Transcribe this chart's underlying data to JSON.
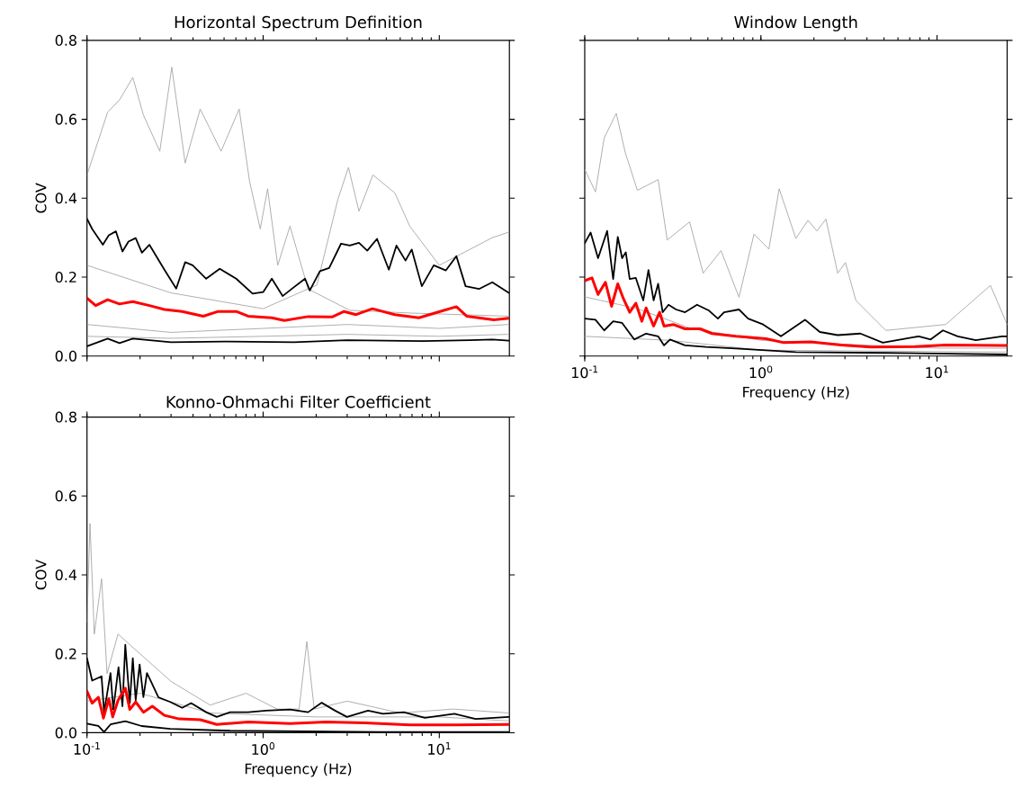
{
  "chart_data": [
    {
      "type": "line",
      "title": "Horizontal Spectrum Definition",
      "ylabel": "COV",
      "log": "x",
      "tick_labels": "y",
      "xlim": [
        0.1,
        25
      ],
      "ylim": [
        0,
        0.8
      ],
      "xticks": [
        {
          "value": 0.1,
          "label": null
        },
        {
          "value": 1,
          "label": null
        },
        {
          "value": 10,
          "label": null
        }
      ],
      "yticks": [
        {
          "value": 0,
          "label": "0.0"
        },
        {
          "value": 0.2,
          "label": "0.2"
        },
        {
          "value": 0.4,
          "label": "0.4"
        },
        {
          "value": 0.6,
          "label": "0.6"
        },
        {
          "value": 0.8,
          "label": "0.8"
        }
      ],
      "series": [
        {
          "color": "#a6a6a6",
          "x": [
            0.1,
            0.131,
            0.153,
            0.182,
            0.209,
            0.259,
            0.303,
            0.361,
            0.439,
            0.494,
            0.577,
            0.731,
            0.837,
            0.963,
            1.06,
            1.21,
            1.42,
            1.8,
            3.1,
            6.8,
            24.8
          ],
          "values": [
            0.459,
            0.618,
            0.649,
            0.706,
            0.611,
            0.519,
            0.732,
            0.489,
            0.626,
            0.58,
            0.519,
            0.626,
            0.443,
            0.322,
            0.424,
            0.23,
            0.329,
            0.17,
            0.116,
            0.109,
            0.101
          ]
        },
        {
          "color": "#a6a6a6",
          "x": [
            0.1,
            0.3,
            1.0,
            2.02,
            2.66,
            3.05,
            3.5,
            4.2,
            5.6,
            6.8,
            10,
            20,
            24.8
          ],
          "values": [
            0.23,
            0.16,
            0.12,
            0.18,
            0.398,
            0.478,
            0.367,
            0.459,
            0.413,
            0.329,
            0.23,
            0.3,
            0.314
          ]
        },
        {
          "color": "#a6a6a6",
          "x": [
            0.1,
            0.3,
            1,
            3,
            10,
            24.8
          ],
          "values": [
            0.08,
            0.06,
            0.07,
            0.08,
            0.07,
            0.08
          ]
        },
        {
          "color": "#a6a6a6",
          "x": [
            0.1,
            0.3,
            1,
            3,
            10,
            24.8
          ],
          "values": [
            0.05,
            0.045,
            0.05,
            0.055,
            0.05,
            0.055
          ]
        },
        {
          "color": "#000000",
          "x": [
            0.1,
            0.107,
            0.123,
            0.133,
            0.146,
            0.159,
            0.172,
            0.189,
            0.205,
            0.226,
            0.275,
            0.321,
            0.361,
            0.398,
            0.475,
            0.567,
            0.703,
            0.871,
            1.0,
            1.12,
            1.29,
            1.48,
            1.73,
            1.84,
            2.1,
            2.37,
            2.77,
            3.1,
            3.5,
            3.9,
            4.43,
            5.17,
            5.71,
            6.43,
            6.97,
            7.96,
            9.3,
            10.9,
            12.5,
            14.1,
            16.8,
            20.0,
            24.8
          ],
          "values": [
            0.348,
            0.322,
            0.282,
            0.306,
            0.316,
            0.265,
            0.29,
            0.299,
            0.262,
            0.282,
            0.219,
            0.171,
            0.238,
            0.23,
            0.196,
            0.221,
            0.196,
            0.158,
            0.162,
            0.196,
            0.152,
            0.173,
            0.196,
            0.166,
            0.215,
            0.223,
            0.285,
            0.28,
            0.287,
            0.267,
            0.297,
            0.219,
            0.28,
            0.242,
            0.27,
            0.177,
            0.23,
            0.217,
            0.253,
            0.177,
            0.17,
            0.187,
            0.16
          ]
        },
        {
          "color": "#000000",
          "x": [
            0.1,
            0.131,
            0.153,
            0.182,
            0.3,
            0.6,
            1.5,
            3,
            8,
            15,
            20,
            24.8
          ],
          "values": [
            0.025,
            0.044,
            0.033,
            0.044,
            0.035,
            0.037,
            0.035,
            0.04,
            0.038,
            0.04,
            0.042,
            0.039
          ]
        },
        {
          "color": "#ff0000",
          "x": [
            0.1,
            0.112,
            0.131,
            0.153,
            0.182,
            0.226,
            0.275,
            0.347,
            0.457,
            0.556,
            0.703,
            0.822,
            1.12,
            1.32,
            1.8,
            2.46,
            2.88,
            3.37,
            4.17,
            5.6,
            7.66,
            10.1,
            12.5,
            14.3,
            20.4,
            24.8
          ],
          "values": [
            0.147,
            0.128,
            0.143,
            0.132,
            0.138,
            0.128,
            0.118,
            0.113,
            0.101,
            0.113,
            0.113,
            0.101,
            0.097,
            0.09,
            0.1,
            0.099,
            0.113,
            0.105,
            0.12,
            0.105,
            0.097,
            0.113,
            0.125,
            0.101,
            0.092,
            0.096
          ]
        }
      ]
    },
    {
      "type": "line",
      "title": "Window Length",
      "xlabel": "Frequency (Hz)",
      "log": "x",
      "tick_labels": "x",
      "xlim": [
        0.1,
        25
      ],
      "ylim": [
        0,
        0.8
      ],
      "xticks": [
        {
          "value": 0.1,
          "label": "10$^{-1}$"
        },
        {
          "value": 1,
          "label": "10$^{0}$"
        },
        {
          "value": 10,
          "label": "10$^{1}$"
        }
      ],
      "yticks": [
        {
          "value": 0,
          "label": null
        },
        {
          "value": 0.2,
          "label": null
        },
        {
          "value": 0.4,
          "label": null
        },
        {
          "value": 0.6,
          "label": null
        },
        {
          "value": 0.8,
          "label": null
        }
      ],
      "series": [
        {
          "color": "#a6a6a6",
          "x": [
            0.1,
            0.115,
            0.129,
            0.151,
            0.17,
            0.199,
            0.261,
            0.294,
            0.394,
            0.47,
            0.594,
            0.751,
            0.914,
            1.11,
            1.27,
            1.58,
            1.85,
            2.08,
            2.34,
            2.73,
            3.02,
            3.46,
            5.12,
            11.2,
            20.1,
            25
          ],
          "values": [
            0.473,
            0.416,
            0.553,
            0.615,
            0.515,
            0.42,
            0.447,
            0.294,
            0.34,
            0.21,
            0.267,
            0.149,
            0.309,
            0.271,
            0.424,
            0.298,
            0.344,
            0.317,
            0.347,
            0.21,
            0.237,
            0.141,
            0.065,
            0.08,
            0.179,
            0.08
          ]
        },
        {
          "color": "#a6a6a6",
          "x": [
            0.1,
            0.2,
            0.4,
            1,
            3,
            10,
            25
          ],
          "values": [
            0.15,
            0.12,
            0.07,
            0.04,
            0.03,
            0.02,
            0.02
          ]
        },
        {
          "color": "#a6a6a6",
          "x": [
            0.1,
            0.3,
            1,
            25
          ],
          "values": [
            0.05,
            0.04,
            0.015,
            0.01
          ]
        },
        {
          "color": "#000000",
          "x": [
            0.1,
            0.108,
            0.119,
            0.134,
            0.145,
            0.154,
            0.163,
            0.171,
            0.18,
            0.195,
            0.215,
            0.23,
            0.246,
            0.261,
            0.277,
            0.299,
            0.33,
            0.371,
            0.434,
            0.508,
            0.57,
            0.618,
            0.751,
            0.846,
            1.03,
            1.3,
            1.78,
            2.16,
            2.73,
            3.67,
            4.92,
            6.22,
            7.87,
            9.2,
            10.8,
            13.1,
            16.6,
            23.4,
            25
          ],
          "values": [
            0.286,
            0.313,
            0.248,
            0.317,
            0.195,
            0.302,
            0.248,
            0.263,
            0.195,
            0.198,
            0.141,
            0.218,
            0.141,
            0.183,
            0.111,
            0.13,
            0.118,
            0.111,
            0.13,
            0.115,
            0.095,
            0.111,
            0.118,
            0.095,
            0.08,
            0.05,
            0.092,
            0.061,
            0.053,
            0.057,
            0.034,
            0.042,
            0.05,
            0.042,
            0.065,
            0.05,
            0.04,
            0.05,
            0.05
          ]
        },
        {
          "color": "#000000",
          "x": [
            0.1,
            0.115,
            0.129,
            0.145,
            0.163,
            0.191,
            0.223,
            0.261,
            0.282,
            0.305,
            0.371,
            0.488,
            0.722,
            1.58,
            5.12,
            25
          ],
          "values": [
            0.095,
            0.092,
            0.065,
            0.088,
            0.084,
            0.042,
            0.057,
            0.05,
            0.027,
            0.042,
            0.027,
            0.023,
            0.019,
            0.01,
            0.008,
            0.004
          ]
        },
        {
          "color": "#ff0000",
          "x": [
            0.1,
            0.11,
            0.119,
            0.131,
            0.142,
            0.154,
            0.166,
            0.18,
            0.195,
            0.211,
            0.223,
            0.246,
            0.266,
            0.282,
            0.318,
            0.371,
            0.452,
            0.528,
            0.722,
            1.07,
            1.35,
            1.92,
            2.85,
            4.21,
            7.57,
            11.2,
            23.4,
            25
          ],
          "values": [
            0.191,
            0.198,
            0.156,
            0.187,
            0.126,
            0.183,
            0.145,
            0.111,
            0.134,
            0.088,
            0.122,
            0.076,
            0.111,
            0.076,
            0.08,
            0.069,
            0.069,
            0.057,
            0.05,
            0.044,
            0.034,
            0.036,
            0.028,
            0.023,
            0.024,
            0.028,
            0.027,
            0.027
          ]
        }
      ]
    },
    {
      "type": "line",
      "title": "Konno-Ohmachi Filter Coefficient",
      "xlabel": "Frequency (Hz)",
      "ylabel": "COV",
      "log": "x",
      "xlim": [
        0.1,
        25
      ],
      "ylim": [
        0,
        0.8
      ],
      "xticks": [
        {
          "value": 0.1,
          "label": "10$^{-1}$"
        },
        {
          "value": 1,
          "label": "10$^{0}$"
        },
        {
          "value": 10,
          "label": "10$^{1}$"
        }
      ],
      "yticks": [
        {
          "value": 0,
          "label": "0.0"
        },
        {
          "value": 0.2,
          "label": "0.2"
        },
        {
          "value": 0.4,
          "label": "0.4"
        },
        {
          "value": 0.6,
          "label": "0.6"
        },
        {
          "value": 0.8,
          "label": "0.8"
        }
      ],
      "series": [
        {
          "color": "#a6a6a6",
          "x": [
            0.1,
            0.104,
            0.11,
            0.121,
            0.13,
            0.15,
            0.2,
            0.3,
            0.5,
            0.8,
            1.2,
            1.6,
            1.77,
            1.95,
            3,
            6,
            12,
            24.8
          ],
          "values": [
            0.28,
            0.53,
            0.25,
            0.39,
            0.15,
            0.25,
            0.2,
            0.13,
            0.07,
            0.1,
            0.06,
            0.06,
            0.231,
            0.06,
            0.08,
            0.05,
            0.06,
            0.05
          ]
        },
        {
          "color": "#a6a6a6",
          "x": [
            0.1,
            0.2,
            0.5,
            2,
            10,
            24.8
          ],
          "values": [
            0.08,
            0.1,
            0.05,
            0.04,
            0.04,
            0.03
          ]
        },
        {
          "color": "#000000",
          "x": [
            0.1,
            0.107,
            0.121,
            0.125,
            0.136,
            0.141,
            0.151,
            0.159,
            0.165,
            0.175,
            0.182,
            0.189,
            0.199,
            0.209,
            0.219,
            0.232,
            0.254,
            0.297,
            0.347,
            0.39,
            0.475,
            0.545,
            0.65,
            0.822,
            1.04,
            1.42,
            1.8,
            2.15,
            2.56,
            2.99,
            3.94,
            4.79,
            6.29,
            8.28,
            12.2,
            16.1,
            24.8
          ],
          "values": [
            0.189,
            0.132,
            0.143,
            0.052,
            0.151,
            0.059,
            0.166,
            0.067,
            0.223,
            0.075,
            0.189,
            0.082,
            0.173,
            0.09,
            0.151,
            0.128,
            0.09,
            0.078,
            0.063,
            0.075,
            0.052,
            0.04,
            0.052,
            0.052,
            0.056,
            0.059,
            0.052,
            0.076,
            0.056,
            0.04,
            0.056,
            0.048,
            0.052,
            0.038,
            0.048,
            0.035,
            0.04
          ]
        },
        {
          "color": "#000000",
          "x": [
            0.1,
            0.116,
            0.125,
            0.136,
            0.165,
            0.204,
            0.297,
            0.65,
            4.6,
            24.8
          ],
          "values": [
            0.023,
            0.017,
            0.002,
            0.021,
            0.029,
            0.017,
            0.01,
            0.005,
            0.002,
            0.002
          ]
        },
        {
          "color": "#ff0000",
          "x": [
            0.1,
            0.107,
            0.116,
            0.124,
            0.133,
            0.14,
            0.15,
            0.165,
            0.175,
            0.189,
            0.209,
            0.235,
            0.275,
            0.334,
            0.44,
            0.545,
            0.822,
            1.42,
            2.28,
            3.78,
            6.8,
            12.2,
            24.8
          ],
          "values": [
            0.105,
            0.075,
            0.09,
            0.037,
            0.086,
            0.04,
            0.082,
            0.113,
            0.059,
            0.078,
            0.052,
            0.067,
            0.044,
            0.035,
            0.033,
            0.021,
            0.027,
            0.023,
            0.027,
            0.025,
            0.02,
            0.02,
            0.021
          ]
        }
      ]
    }
  ]
}
